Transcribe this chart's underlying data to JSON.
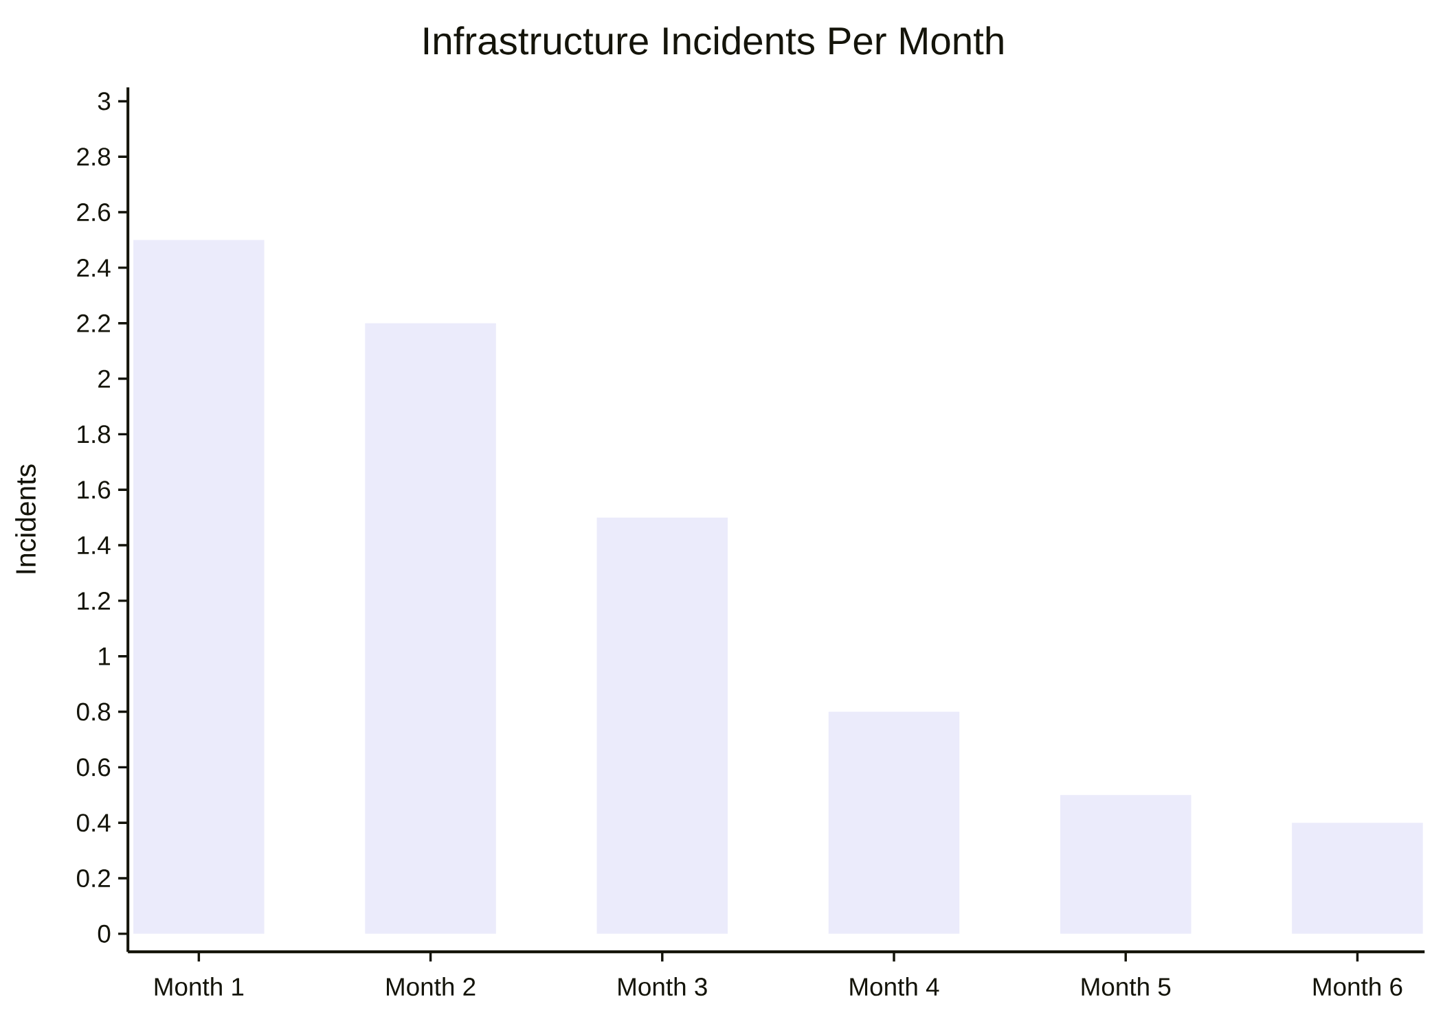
{
  "chart_data": {
    "type": "bar",
    "title": "Infrastructure Incidents Per Month",
    "ylabel": "Incidents",
    "categories": [
      "Month 1",
      "Month 2",
      "Month 3",
      "Month 4",
      "Month 5",
      "Month 6"
    ],
    "values": [
      2.5,
      2.2,
      1.5,
      0.8,
      0.5,
      0.4
    ],
    "color": "#ebebfb",
    "ylim": [
      -0.065,
      3.05
    ],
    "yticks": [
      0,
      0.2,
      0.4,
      0.6,
      0.8,
      1,
      1.2,
      1.4,
      1.6,
      1.8,
      2,
      2.2,
      2.4,
      2.6,
      2.8,
      3
    ]
  }
}
